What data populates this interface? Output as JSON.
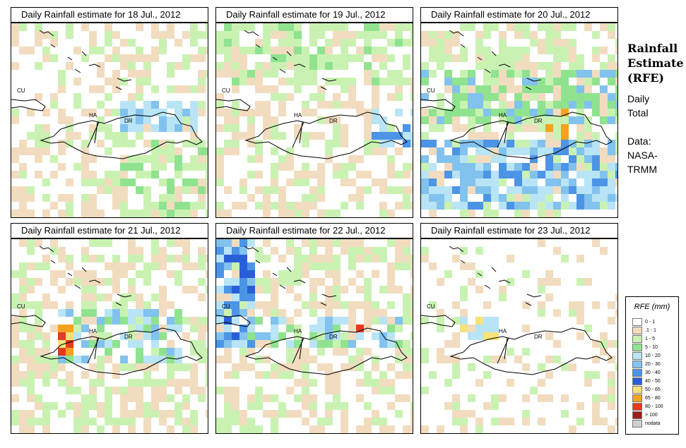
{
  "panels": [
    {
      "title": "Daily Rainfall estimate for  18 Jul., 2012"
    },
    {
      "title": "Daily Rainfall estimate for  19 Jul., 2012"
    },
    {
      "title": "Daily Rainfall estimate for  20 Jul., 2012"
    },
    {
      "title": "Daily Rainfall estimate for  21 Jul., 2012"
    },
    {
      "title": "Daily Rainfall estimate for  22 Jul., 2012"
    },
    {
      "title": "Daily Rainfall estimate for  23 Jul., 2012"
    }
  ],
  "map_labels": {
    "cuba": "CU",
    "haiti": "HA",
    "dominican_republic": "DR"
  },
  "side": {
    "title_line1": "Rainfall",
    "title_line2": "Estimate",
    "title_line3": "(RFE)",
    "daily_line1": "Daily",
    "daily_line2": "Total",
    "data_line1": "Data:",
    "data_line2": "NASA-",
    "data_line3": "TRMM"
  },
  "legend": {
    "title": "RFE (mm)",
    "items": [
      {
        "label": "0 - 1",
        "color": "#ffffff"
      },
      {
        "label": ".1 - 1",
        "color": "#f2dcbf"
      },
      {
        "label": "1 - 5",
        "color": "#c9f2b2"
      },
      {
        "label": "5 - 10",
        "color": "#8fe38f"
      },
      {
        "label": "10 - 20",
        "color": "#b8e4f5"
      },
      {
        "label": "20 - 30",
        "color": "#82c2ee"
      },
      {
        "label": "30 - 40",
        "color": "#4c94e6"
      },
      {
        "label": "40 - 50",
        "color": "#2a5ed8"
      },
      {
        "label": "50 - 65",
        "color": "#f7e27a"
      },
      {
        "label": "65 - 80",
        "color": "#f5a21f"
      },
      {
        "label": "80 - 100",
        "color": "#e8391c"
      },
      {
        "label": "> 100",
        "color": "#9c1c1c"
      },
      {
        "label": "nodata",
        "color": "#cfcfcf"
      }
    ]
  }
}
